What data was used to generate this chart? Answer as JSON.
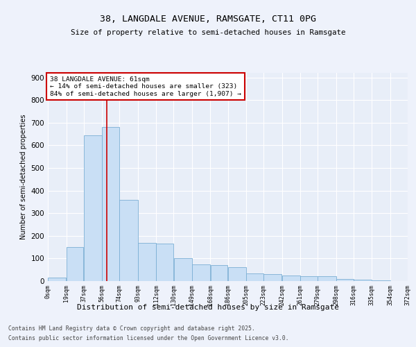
{
  "title_line1": "38, LANGDALE AVENUE, RAMSGATE, CT11 0PG",
  "title_line2": "Size of property relative to semi-detached houses in Ramsgate",
  "xlabel": "Distribution of semi-detached houses by size in Ramsgate",
  "ylabel": "Number of semi-detached properties",
  "annotation_title": "38 LANGDALE AVENUE: 61sqm",
  "annotation_line2": "← 14% of semi-detached houses are smaller (323)",
  "annotation_line3": "84% of semi-detached houses are larger (1,907) →",
  "property_size": 61,
  "bin_edges": [
    0,
    19,
    37,
    56,
    74,
    93,
    112,
    130,
    149,
    168,
    186,
    205,
    223,
    242,
    261,
    279,
    298,
    316,
    335,
    354,
    372
  ],
  "bar_values": [
    15,
    150,
    645,
    680,
    360,
    170,
    165,
    100,
    75,
    70,
    60,
    35,
    30,
    25,
    20,
    20,
    10,
    5,
    2,
    1
  ],
  "bar_color": "#c9dff5",
  "bar_edge_color": "#7bafd4",
  "vline_color": "#cc0000",
  "vline_x": 61,
  "background_color": "#eef2fb",
  "plot_background": "#e8eef8",
  "grid_color": "#ffffff",
  "footer_line1": "Contains HM Land Registry data © Crown copyright and database right 2025.",
  "footer_line2": "Contains public sector information licensed under the Open Government Licence v3.0.",
  "ylim": [
    0,
    920
  ],
  "yticks": [
    0,
    100,
    200,
    300,
    400,
    500,
    600,
    700,
    800,
    900
  ],
  "tick_labels": [
    "0sqm",
    "19sqm",
    "37sqm",
    "56sqm",
    "74sqm",
    "93sqm",
    "112sqm",
    "130sqm",
    "149sqm",
    "168sqm",
    "186sqm",
    "205sqm",
    "223sqm",
    "242sqm",
    "261sqm",
    "279sqm",
    "298sqm",
    "316sqm",
    "335sqm",
    "354sqm",
    "372sqm"
  ]
}
